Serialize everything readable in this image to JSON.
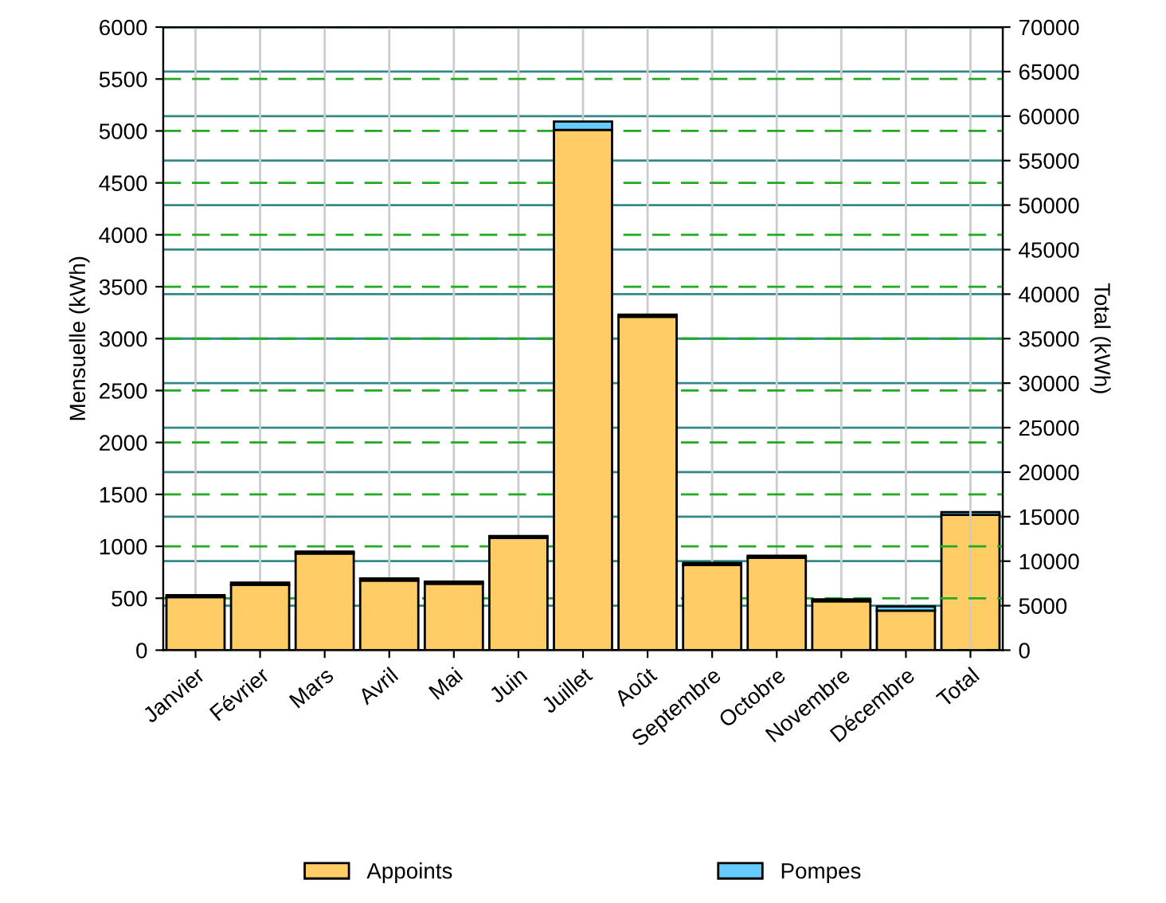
{
  "chart_data": {
    "type": "bar",
    "stacked": true,
    "categories": [
      "Janvier",
      "Février",
      "Mars",
      "Avril",
      "Mai",
      "Juin",
      "Juillet",
      "Août",
      "Septembre",
      "Octobre",
      "Novembre",
      "Décembre",
      "Total"
    ],
    "series": [
      {
        "name": "Appoints",
        "color": "#ffcc66",
        "values": [
          510,
          630,
          930,
          670,
          640,
          1080,
          5010,
          3210,
          820,
          890,
          470,
          380,
          null
        ]
      },
      {
        "name": "Pompes",
        "color": "#66ccff",
        "values": [
          20,
          20,
          20,
          20,
          20,
          20,
          80,
          20,
          20,
          20,
          20,
          40,
          null
        ]
      },
      {
        "color": "#ffcc66",
        "axis": "y2",
        "values": [
          null,
          null,
          null,
          null,
          null,
          null,
          null,
          null,
          null,
          null,
          null,
          null,
          15200
        ]
      },
      {
        "color": "#66ccff",
        "axis": "y2",
        "values": [
          null,
          null,
          null,
          null,
          null,
          null,
          null,
          null,
          null,
          null,
          null,
          null,
          300
        ]
      }
    ],
    "ylabel": "Mensuelle (kWh)",
    "y2label": "Total (kWh)",
    "ylim": [
      0,
      6000
    ],
    "yticks": [
      0,
      500,
      1000,
      1500,
      2000,
      2500,
      3000,
      3500,
      4000,
      4500,
      5000,
      5500,
      6000
    ],
    "y2lim": [
      0,
      70000
    ],
    "y2ticks": [
      0,
      5000,
      10000,
      15000,
      20000,
      25000,
      30000,
      35000,
      40000,
      45000,
      50000,
      55000,
      60000,
      65000,
      70000
    ],
    "grid": true,
    "legend": "bottom"
  }
}
